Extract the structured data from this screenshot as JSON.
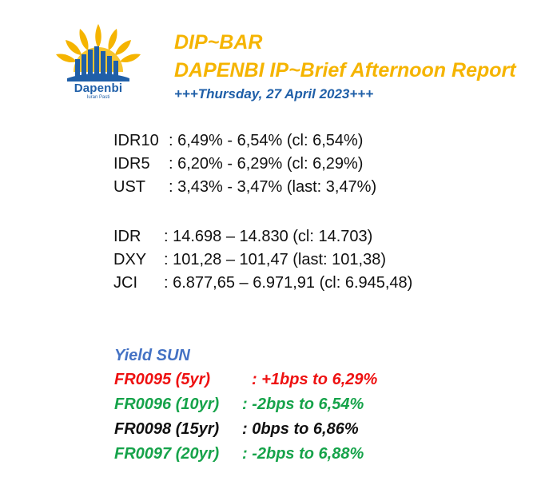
{
  "logo": {
    "wordmark": "Dapenbi",
    "tagline": "Iuran Pasti",
    "petal_color": "#f5b400",
    "skyline_color": "#1f5fa8"
  },
  "header": {
    "title": "DIP~BAR",
    "subtitle": "DAPENBI IP~Brief Afternoon Report",
    "date": "+++Thursday, 27 April 2023+++"
  },
  "rates": [
    {
      "label": "IDR10",
      "value": ": 6,49% - 6,54% (cl: 6,54%)"
    },
    {
      "label": "IDR5",
      "value": ": 6,20% - 6,29% (cl: 6,29%)"
    },
    {
      "label": "UST",
      "value": ": 3,43% - 3,47% (last: 3,47%)"
    }
  ],
  "markets": [
    {
      "label": "IDR",
      "value": ": 14.698 – 14.830 (cl: 14.703)"
    },
    {
      "label": "DXY",
      "value": ": 101,28 – 101,47 (last: 101,38)"
    },
    {
      "label": "JCI",
      "value": ": 6.877,65 – 6.971,91 (cl: 6.945,48)"
    }
  ],
  "yield_sun": {
    "title": "Yield SUN",
    "bonds": [
      {
        "label": "FR0095 (5yr)",
        "value": ": +1bps to 6,29%",
        "color": "#ee1111"
      },
      {
        "label": "FR0096 (10yr)",
        "value": ": -2bps to 6,54%",
        "color": "#16a34a"
      },
      {
        "label": "FR0098 (15yr)",
        "value": ": 0bps to 6,86%",
        "color": "#111111"
      },
      {
        "label": "FR0097 (20yr)",
        "value": ": -2bps to 6,88%",
        "color": "#16a34a"
      }
    ]
  }
}
